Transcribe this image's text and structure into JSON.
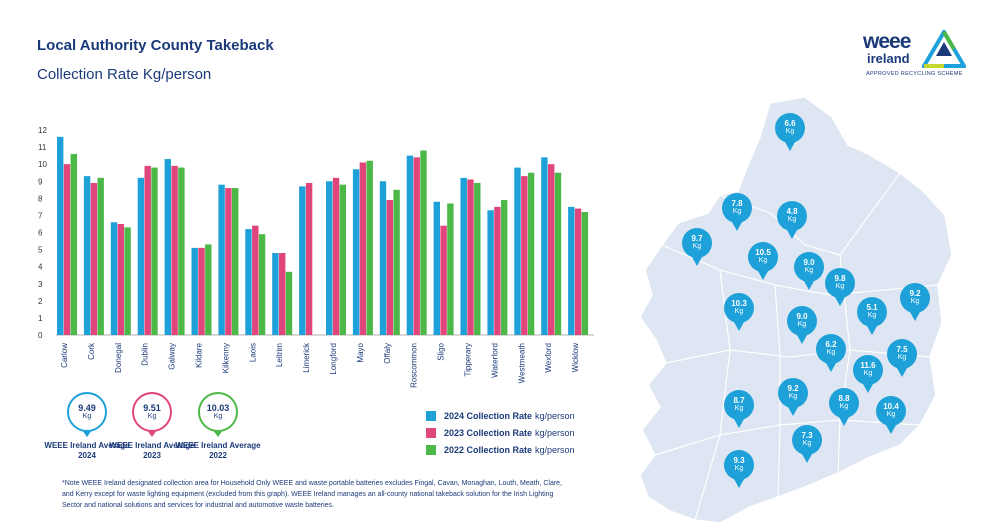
{
  "header": {
    "title": "Local Authority County Takeback",
    "subtitle": "Collection Rate Kg/person"
  },
  "chart_data": {
    "type": "bar",
    "categories": [
      "Carlow",
      "Cork",
      "Donegal",
      "Dublin",
      "Galway",
      "Kildare",
      "Kilkenny",
      "Laois",
      "Leitrim",
      "Limerick",
      "Longford",
      "Mayo",
      "Offaly",
      "Roscommon",
      "Sligo",
      "Tipperary",
      "Waterford",
      "Westmeath",
      "Wexford",
      "Wicklow"
    ],
    "series": [
      {
        "name": "2024 Collection Rate kg/person",
        "color": "#1ea1d9",
        "values": [
          11.6,
          9.3,
          6.6,
          9.2,
          10.3,
          5.1,
          8.8,
          6.2,
          4.8,
          8.7,
          9.0,
          9.7,
          9.0,
          10.5,
          7.8,
          9.2,
          7.3,
          9.8,
          10.4,
          7.5
        ]
      },
      {
        "name": "2023 Collection Rate kg/person",
        "color": "#e0457b",
        "values": [
          10.0,
          8.9,
          6.5,
          9.9,
          9.9,
          5.1,
          8.6,
          6.4,
          4.8,
          8.9,
          9.2,
          10.1,
          7.9,
          10.4,
          6.4,
          9.1,
          7.5,
          9.3,
          10.0,
          7.4
        ]
      },
      {
        "name": "2022 Collection Rate kg/person",
        "color": "#4cb848",
        "values": [
          10.6,
          9.2,
          6.3,
          9.8,
          9.8,
          5.3,
          8.6,
          5.9,
          3.7,
          null,
          8.8,
          10.2,
          8.5,
          10.8,
          7.7,
          8.9,
          7.9,
          9.5,
          9.5,
          7.2
        ]
      }
    ],
    "yticks": [
      "0",
      "1",
      "2",
      "3",
      "4",
      "5",
      "6",
      "7",
      "8",
      "9",
      "10",
      "11",
      "12"
    ],
    "ylim": [
      0,
      12
    ]
  },
  "averages": [
    {
      "value": "9.49",
      "unit": "Kg",
      "label": "WEEE Ireland Average 2024",
      "color": "#1ea1d9"
    },
    {
      "value": "9.51",
      "unit": "Kg",
      "label": "WEEE Ireland Average 2023",
      "color": "#e0457b"
    },
    {
      "value": "10.03",
      "unit": "Kg",
      "label": "WEEE Ireland Average 2022",
      "color": "#4cb848"
    }
  ],
  "legend": [
    {
      "bold": "2024 Collection Rate",
      "rest": "kg/person",
      "color": "#1ea1d9"
    },
    {
      "bold": "2023 Collection Rate",
      "rest": "kg/person",
      "color": "#e0457b"
    },
    {
      "bold": "2022 Collection Rate",
      "rest": "kg/person",
      "color": "#4cb848"
    }
  ],
  "note": "*Note WEEE Ireland designated collection area for Household Only WEEE and waste portable batteries excludes Fingal, Cavan, Monaghan, Louth, Meath, Clare, and Kerry except for waste lighting equipment (excluded from this graph). WEEE Ireland manages an all-county national takeback solution for the Irish Lighting Sector and national solutions and services for industrial and automotive waste batteries.",
  "logo": {
    "word1": "weee",
    "word2": "ireland",
    "tagline": "APPROVED RECYCLING SCHEME"
  },
  "map_pins": [
    {
      "value": "6.6",
      "unit": "Kg"
    },
    {
      "value": "7.8",
      "unit": "Kg"
    },
    {
      "value": "4.8",
      "unit": "Kg"
    },
    {
      "value": "9.7",
      "unit": "Kg"
    },
    {
      "value": "10.5",
      "unit": "Kg"
    },
    {
      "value": "9.0",
      "unit": "Kg"
    },
    {
      "value": "9.8",
      "unit": "Kg"
    },
    {
      "value": "9.2",
      "unit": "Kg"
    },
    {
      "value": "10.3",
      "unit": "Kg"
    },
    {
      "value": "5.1",
      "unit": "Kg"
    },
    {
      "value": "9.0",
      "unit": "Kg"
    },
    {
      "value": "6.2",
      "unit": "Kg"
    },
    {
      "value": "7.5",
      "unit": "Kg"
    },
    {
      "value": "11.6",
      "unit": "Kg"
    },
    {
      "value": "9.2",
      "unit": "Kg"
    },
    {
      "value": "8.7",
      "unit": "Kg"
    },
    {
      "value": "8.8",
      "unit": "Kg"
    },
    {
      "value": "10.4",
      "unit": "Kg"
    },
    {
      "value": "7.3",
      "unit": "Kg"
    },
    {
      "value": "9.3",
      "unit": "Kg"
    }
  ]
}
